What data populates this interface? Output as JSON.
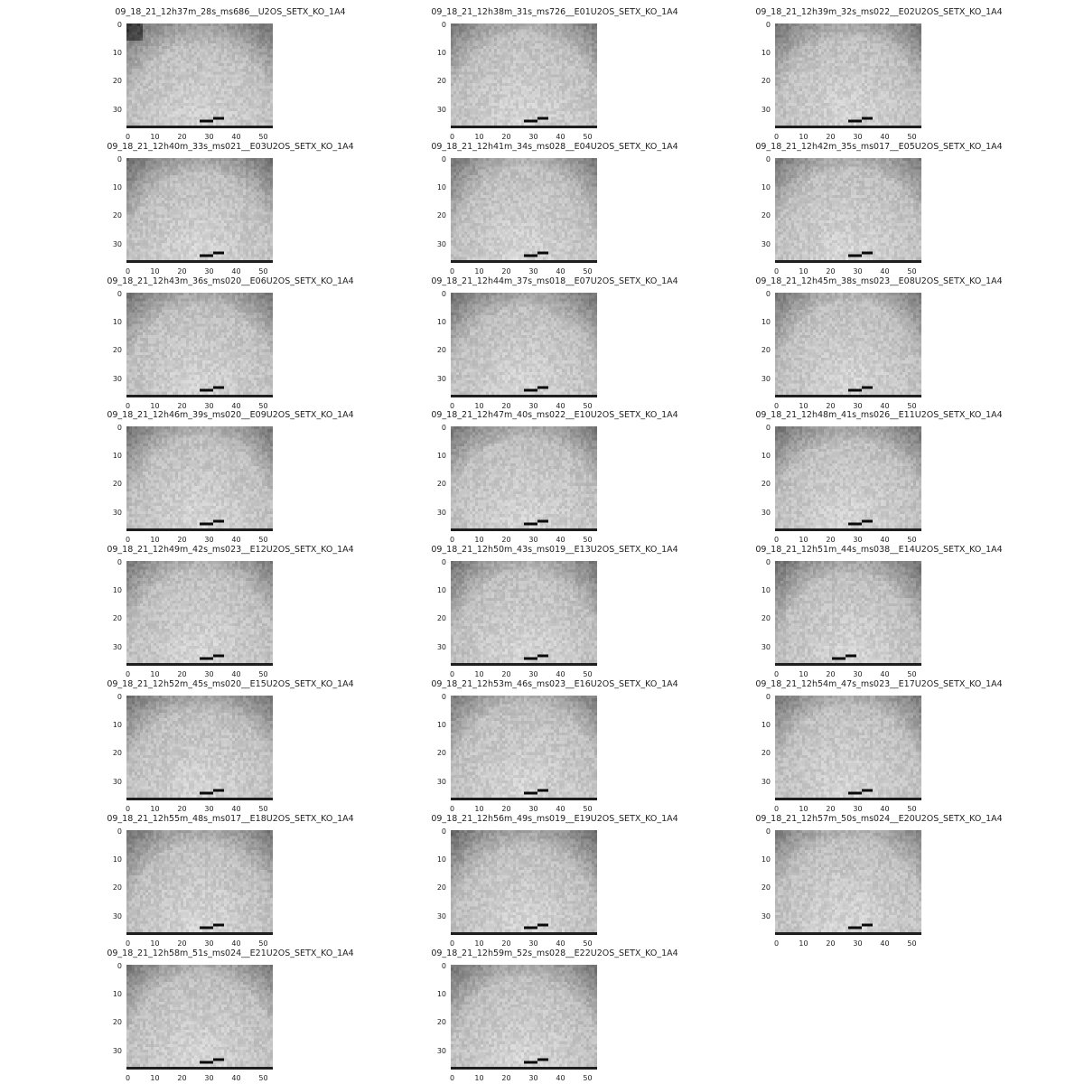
{
  "panels": [
    {
      "title": "09_18_21_12h37m_28s_ms686__U2OS_SETX_KO_1A4"
    },
    {
      "title": "09_18_21_12h38m_31s_ms726__E01U2OS_SETX_KO_1A4"
    },
    {
      "title": "09_18_21_12h39m_32s_ms022__E02U2OS_SETX_KO_1A4"
    },
    {
      "title": "09_18_21_12h40m_33s_ms021__E03U2OS_SETX_KO_1A4"
    },
    {
      "title": "09_18_21_12h41m_34s_ms028__E04U2OS_SETX_KO_1A4"
    },
    {
      "title": "09_18_21_12h42m_35s_ms017__E05U2OS_SETX_KO_1A4"
    },
    {
      "title": "09_18_21_12h43m_36s_ms020__E06U2OS_SETX_KO_1A4"
    },
    {
      "title": "09_18_21_12h44m_37s_ms018__E07U2OS_SETX_KO_1A4"
    },
    {
      "title": "09_18_21_12h45m_38s_ms023__E08U2OS_SETX_KO_1A4"
    },
    {
      "title": "09_18_21_12h46m_39s_ms020__E09U2OS_SETX_KO_1A4"
    },
    {
      "title": "09_18_21_12h47m_40s_ms022__E10U2OS_SETX_KO_1A4"
    },
    {
      "title": "09_18_21_12h48m_41s_ms026__E11U2OS_SETX_KO_1A4"
    },
    {
      "title": "09_18_21_12h49m_42s_ms023__E12U2OS_SETX_KO_1A4"
    },
    {
      "title": "09_18_21_12h50m_43s_ms019__E13U2OS_SETX_KO_1A4"
    },
    {
      "title": "09_18_21_12h51m_44s_ms038__E14U2OS_SETX_KO_1A4"
    },
    {
      "title": "09_18_21_12h52m_45s_ms020__E15U2OS_SETX_KO_1A4"
    },
    {
      "title": "09_18_21_12h53m_46s_ms023__E16U2OS_SETX_KO_1A4"
    },
    {
      "title": "09_18_21_12h54m_47s_ms023__E17U2OS_SETX_KO_1A4"
    },
    {
      "title": "09_18_21_12h55m_48s_ms017__E18U2OS_SETX_KO_1A4"
    },
    {
      "title": "09_18_21_12h56m_49s_ms019__E19U2OS_SETX_KO_1A4"
    },
    {
      "title": "09_18_21_12h57m_50s_ms024__E20U2OS_SETX_KO_1A4"
    },
    {
      "title": "09_18_21_12h58m_51s_ms024__E21U2OS_SETX_KO_1A4"
    },
    {
      "title": "09_18_21_12h59m_52s_ms028__E22U2OS_SETX_KO_1A4"
    }
  ],
  "axes": {
    "x_ticks": [
      "0",
      "10",
      "20",
      "30",
      "40",
      "50"
    ],
    "y_ticks": [
      "0",
      "10",
      "20",
      "30"
    ]
  }
}
